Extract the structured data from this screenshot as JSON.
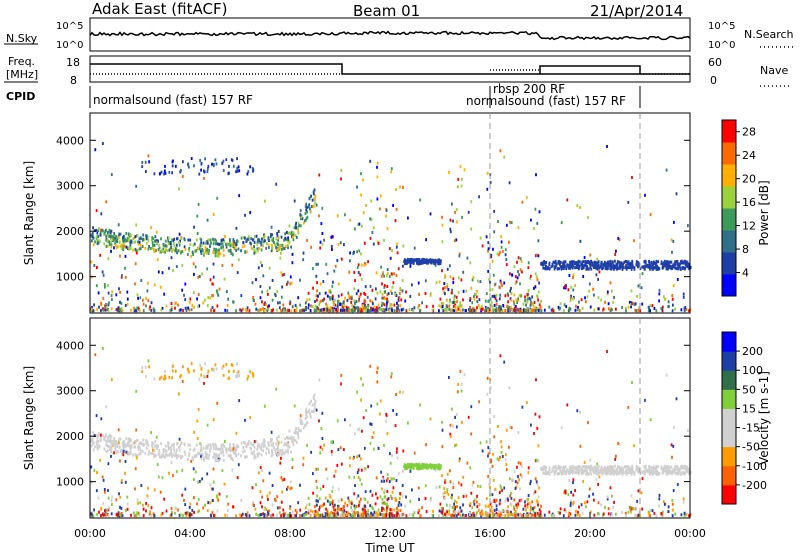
{
  "header": {
    "station": "Adak East (fitACF)",
    "beam": "Beam 01",
    "date": "21/Apr/2014"
  },
  "noise_panel": {
    "left_label": "N.Sky",
    "right_label": "N.Search",
    "left_ticks": [
      "10^5",
      "10^0"
    ],
    "right_ticks": [
      "10^5",
      "10^0"
    ]
  },
  "freq_panel": {
    "left_label_line1": "Freq.",
    "left_label_line2": "[MHz]",
    "right_label": "Nave",
    "left_ticks": [
      "18",
      "8"
    ],
    "right_ticks": [
      "60",
      "0"
    ]
  },
  "cpid": {
    "label": "CPID",
    "programs": [
      {
        "name": "normalsound (fast) 157 RF",
        "start_h": 0
      },
      {
        "name": "rbsp 200 RF",
        "start_h": 16
      },
      {
        "name": "normalsound (fast) 157 RF",
        "start_h": 16
      }
    ],
    "dashed_lines_h": [
      16,
      22
    ]
  },
  "colors": {
    "power_scale": [
      "#0000ff",
      "#1e3fa8",
      "#2f6f8a",
      "#3c9a5a",
      "#9bd23c",
      "#ffb000",
      "#ff6a00",
      "#ff0000"
    ],
    "velocity_scale": [
      "#ff0000",
      "#ff6000",
      "#ff9c00",
      "#d0d0d0",
      "#d0d0d0",
      "#7fd03a",
      "#2f6f4a",
      "#1e3fa8",
      "#0000ff"
    ],
    "ground_scatter_grey": "#bebebe"
  },
  "chart_data": [
    {
      "type": "heatmap",
      "name": "power",
      "title": "",
      "xlabel": "Time UT",
      "ylabel": "Slant Range [km]",
      "x_ticks": [
        "00:00",
        "04:00",
        "08:00",
        "12:00",
        "16:00",
        "20:00",
        "00:00"
      ],
      "xlim_hours": [
        0,
        24
      ],
      "ylim": [
        200,
        4600
      ],
      "y_ticks": [
        1000,
        2000,
        3000,
        4000
      ],
      "colorbar": {
        "label": "Power [dB]",
        "ticks": [
          4,
          8,
          12,
          16,
          20,
          24,
          28
        ],
        "range": [
          0,
          30
        ]
      }
    },
    {
      "type": "heatmap",
      "name": "velocity",
      "title": "",
      "xlabel": "Time UT",
      "ylabel": "Slant Range [km]",
      "x_ticks": [
        "00:00",
        "04:00",
        "08:00",
        "12:00",
        "16:00",
        "20:00",
        "00:00"
      ],
      "xlim_hours": [
        0,
        24
      ],
      "ylim": [
        200,
        4600
      ],
      "y_ticks": [
        1000,
        2000,
        3000,
        4000
      ],
      "colorbar": {
        "label": "Velocity [m s-1]",
        "ticks": [
          200,
          100,
          50,
          15,
          -15,
          -50,
          -100,
          -200
        ],
        "range": [
          -250,
          250
        ]
      }
    }
  ],
  "axes": {
    "x_title": "Time UT",
    "y_title": "Slant Range [km]",
    "power_label": "Power [dB]",
    "velocity_label": "Velocity [m s-1]"
  }
}
